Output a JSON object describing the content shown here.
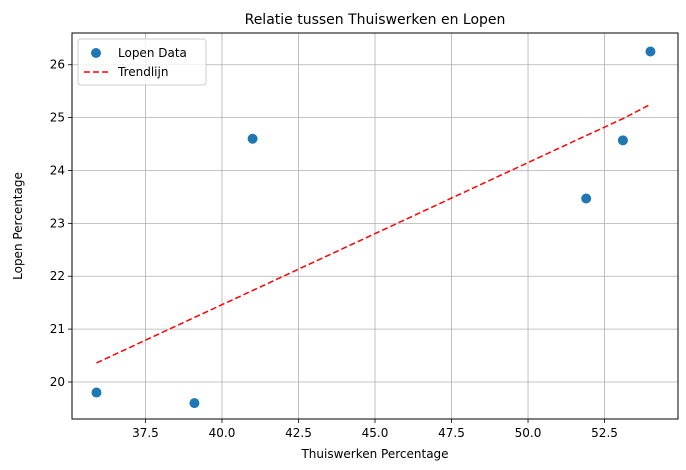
{
  "chart_data": {
    "type": "scatter",
    "title": "Relatie tussen Thuiswerken en Lopen",
    "xlabel": "Thuiswerken Percentage",
    "ylabel": "Lopen Percentage",
    "xlim": [
      35.1,
      54.9
    ],
    "ylim": [
      19.3,
      26.6
    ],
    "xticks": [
      37.5,
      40.0,
      42.5,
      45.0,
      47.5,
      50.0,
      52.5
    ],
    "xtick_labels": [
      "37.5",
      "40.0",
      "42.5",
      "45.0",
      "47.5",
      "50.0",
      "52.5"
    ],
    "yticks": [
      20,
      21,
      22,
      23,
      24,
      25,
      26
    ],
    "ytick_labels": [
      "20",
      "21",
      "22",
      "23",
      "24",
      "25",
      "26"
    ],
    "grid": true,
    "legend_position": "top-left",
    "series": [
      {
        "name": "Lopen Data",
        "kind": "scatter",
        "color": "#1f77b4",
        "x": [
          35.9,
          39.1,
          41.0,
          51.9,
          53.1,
          54.0
        ],
        "y": [
          19.8,
          19.6,
          24.6,
          23.47,
          24.57,
          26.25
        ]
      },
      {
        "name": "Trendlijn",
        "kind": "line",
        "style": "dashed",
        "color": "#ff0000",
        "x": [
          35.9,
          39.1,
          41.0,
          51.9,
          53.1,
          54.0
        ],
        "y": [
          20.36,
          21.22,
          21.73,
          24.66,
          24.98,
          25.25
        ]
      }
    ]
  }
}
